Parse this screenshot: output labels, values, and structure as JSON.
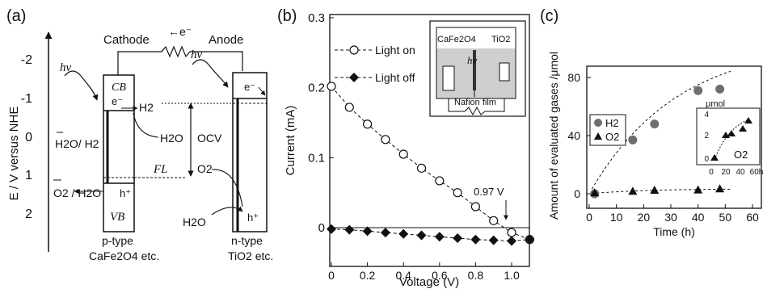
{
  "colors": {
    "ink": "#111111",
    "band_gray": "#c8c8c8",
    "light_gray": "#d9d9d9",
    "marker_gray": "#6e6e6e"
  },
  "panel_a": {
    "label": "(a)",
    "y_axis_label": "E  / V versus NHE",
    "y_ticks": [
      "-2",
      "-1",
      "0",
      "1",
      "2"
    ],
    "ref_h2": "H2O/ H2",
    "ref_o2": "O2 / H2O",
    "cathode": "Cathode",
    "anode": "Anode",
    "electron_top": "←e⁻",
    "hv": "hν",
    "cb": "CB",
    "vb": "VB",
    "e_minus": "e⁻",
    "h_plus": "h⁺",
    "h2": "H2",
    "h2o_left": "H2O",
    "h2o_right": "H2O",
    "o2": "O2",
    "ocv": "OCV",
    "fl": "FL",
    "p_type": "p-type",
    "p_material": "CaFe2O4 etc.",
    "n_type": "n-type",
    "n_material": "TiO2 etc."
  },
  "panel_b": {
    "label": "(b)",
    "inset": {
      "left": "CaFe2O4",
      "right": "TiO2",
      "hv": "hν",
      "membrane": "Nafion film"
    },
    "annotation": "0.97 V"
  },
  "panel_c": {
    "label": "(c)",
    "inset_unit": "μmol",
    "inset_legend": "O2",
    "inset_y_ticks": [
      "0",
      "2",
      "4"
    ],
    "inset_x_ticks": [
      "0",
      "20",
      "40",
      "60h"
    ]
  },
  "chart_data": [
    {
      "type": "line",
      "xlabel": "Voltage  (V)",
      "ylabel": "Current (mA)",
      "xlim": [
        0,
        1.1
      ],
      "ylim": [
        -0.02,
        0.3
      ],
      "x_ticks": [
        "0",
        "0.2",
        "0.4",
        "0.6",
        "0.8",
        "1.0"
      ],
      "y_ticks": [
        "0.3",
        "0.2",
        "0.1",
        "0"
      ],
      "legend_placement": "top-left",
      "series": [
        {
          "name": "Light on",
          "marker": "open-circle",
          "x": [
            0,
            0.1,
            0.2,
            0.3,
            0.4,
            0.5,
            0.6,
            0.7,
            0.8,
            0.9,
            1.0,
            1.1
          ],
          "y": [
            0.202,
            0.172,
            0.148,
            0.126,
            0.105,
            0.085,
            0.067,
            0.05,
            0.03,
            0.01,
            -0.007,
            -0.017
          ]
        },
        {
          "name": "Light off",
          "marker": "filled-diamond",
          "x": [
            0,
            0.1,
            0.2,
            0.3,
            0.4,
            0.5,
            0.6,
            0.7,
            0.8,
            0.9,
            1.0,
            1.1
          ],
          "y": [
            -0.002,
            -0.003,
            -0.005,
            -0.007,
            -0.009,
            -0.011,
            -0.013,
            -0.015,
            -0.017,
            -0.018,
            -0.019,
            -0.017
          ]
        }
      ]
    },
    {
      "type": "scatter",
      "xlabel": "Time (h)",
      "ylabel": "Amount of evaluated gases /μmol",
      "xlim": [
        0,
        60
      ],
      "ylim": [
        -5,
        85
      ],
      "x_ticks": [
        "0",
        "10",
        "20",
        "30",
        "40",
        "50",
        "60"
      ],
      "y_ticks": [
        "80",
        "40",
        "0"
      ],
      "legend_placement": "left",
      "series": [
        {
          "name": "H2",
          "marker": "circle",
          "x": [
            2,
            16,
            24,
            40,
            48
          ],
          "y": [
            0,
            37,
            48,
            71,
            72
          ]
        },
        {
          "name": "O2",
          "marker": "triangle",
          "x": [
            2,
            16,
            24,
            40,
            48
          ],
          "y": [
            0.5,
            1.5,
            2.2,
            2.4,
            3.2
          ]
        }
      ]
    }
  ]
}
